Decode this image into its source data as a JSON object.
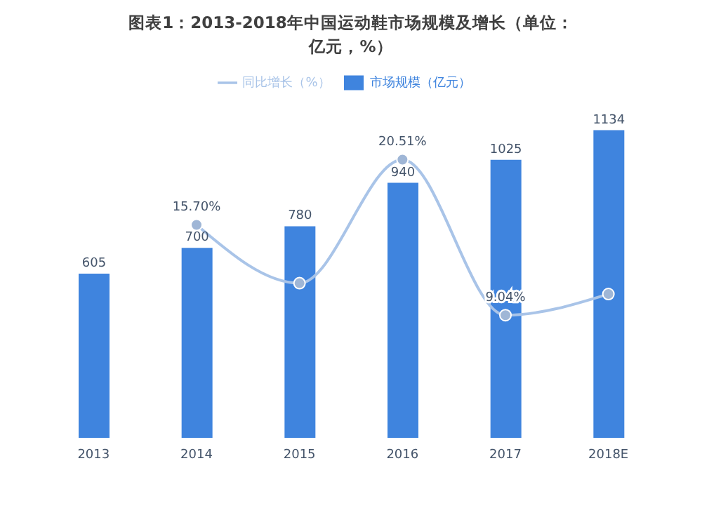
{
  "chart_data": {
    "type": "bar",
    "title": "图表1：2013-2018年中国运动鞋市场规模及增长（单位：亿元，%）",
    "categories": [
      "2013",
      "2014",
      "2015",
      "2016",
      "2017",
      "2018E"
    ],
    "series": [
      {
        "name": "市场规模（亿元）",
        "color": "#3f84de",
        "values": [
          605,
          700,
          780,
          940,
          1025,
          1134
        ],
        "data_labels": true
      },
      {
        "name": "同比增长（%）",
        "type": "line",
        "axis": "y2",
        "color": "#a9c4e8",
        "marker": "circle",
        "values": [
          null,
          15.7,
          11.4,
          20.51,
          9.04,
          10.6
        ],
        "value_labels": [
          null,
          "15.70%",
          null,
          "20.51%",
          "9.04%",
          null
        ]
      }
    ],
    "tick_labels": "x",
    "legend": "top"
  }
}
